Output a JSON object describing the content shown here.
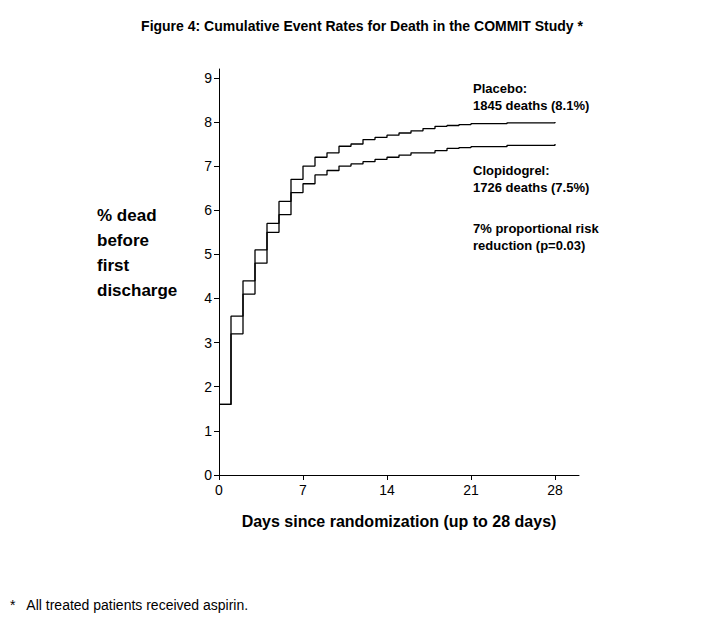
{
  "chart_data": {
    "type": "line",
    "title": "Figure 4: Cumulative Event Rates for Death in the COMMIT Study *",
    "x_label": "Days since randomization (up to 28 days)",
    "y_label": "% dead\nbefore\nfirst\ndischarge",
    "x": [
      0,
      1,
      2,
      3,
      4,
      5,
      6,
      7,
      8,
      9,
      10,
      11,
      12,
      13,
      14,
      15,
      16,
      17,
      18,
      19,
      20,
      21,
      24,
      28
    ],
    "series": [
      {
        "name": "Placebo",
        "color": "#000000",
        "line_style": "step",
        "marker": "none",
        "values": [
          1.6,
          3.6,
          4.4,
          5.1,
          5.7,
          6.2,
          6.7,
          7.0,
          7.2,
          7.3,
          7.45,
          7.5,
          7.6,
          7.65,
          7.7,
          7.75,
          7.8,
          7.85,
          7.9,
          7.92,
          7.94,
          7.96,
          7.98,
          8.0
        ]
      },
      {
        "name": "Clopidogrel",
        "color": "#000000",
        "line_style": "step",
        "marker": "none",
        "values": [
          1.6,
          3.2,
          4.1,
          4.8,
          5.5,
          5.9,
          6.4,
          6.6,
          6.8,
          6.9,
          7.0,
          7.05,
          7.1,
          7.15,
          7.2,
          7.25,
          7.3,
          7.3,
          7.35,
          7.4,
          7.42,
          7.44,
          7.47,
          7.5
        ]
      }
    ],
    "annotations": [
      "Placebo:\n1845 deaths (8.1%)",
      "Clopidogrel:\n1726 deaths (7.5%)",
      "7% proportional risk\nreduction (p=0.03)"
    ],
    "footnote": "*   All treated patients received aspirin.",
    "xlim": [
      0,
      30
    ],
    "xticks": [
      0,
      7,
      14,
      21,
      28
    ],
    "ylim": [
      0,
      9.2
    ],
    "yticks": [
      0,
      1,
      2,
      3,
      4,
      5,
      6,
      7,
      8,
      9
    ],
    "grid": false,
    "legend": "none"
  }
}
